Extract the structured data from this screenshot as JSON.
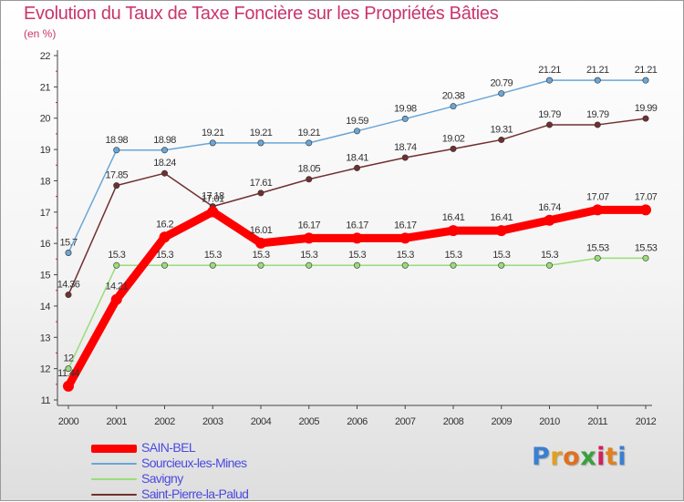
{
  "title": "Evolution du Taux de Taxe Foncière sur les Propriétés Bâties",
  "subtitle": "(en %)",
  "brand": {
    "letters": [
      "P",
      "r",
      "o",
      "x",
      "i",
      "t",
      "i"
    ],
    "colors": [
      "#3a7fd0",
      "#e0a020",
      "#e07020",
      "#3aa040",
      "#d02060",
      "#e08020",
      "#3a7fd0"
    ]
  },
  "legend": [
    {
      "label": "SAIN-BEL",
      "color": "#ff0000"
    },
    {
      "label": "Sourcieux-les-Mines",
      "color": "#6aa6d6"
    },
    {
      "label": "Savigny",
      "color": "#99dd77"
    },
    {
      "label": "Saint-Pierre-la-Palud",
      "color": "#703030"
    }
  ],
  "chart_data": {
    "type": "line",
    "title": "Evolution du Taux de Taxe Foncière sur les Propriétés Bâties",
    "ylabel": "(en %)",
    "x": [
      "2000",
      "2001",
      "2002",
      "2003",
      "2004",
      "2005",
      "2006",
      "2007",
      "2008",
      "2009",
      "2010",
      "2011",
      "2012"
    ],
    "ylim": [
      11,
      22
    ],
    "yticks": [
      "11",
      "12",
      "13",
      "14",
      "15",
      "16",
      "17",
      "18",
      "19",
      "20",
      "21",
      "22"
    ],
    "grid": false,
    "legend_position": "bottom-left",
    "series": [
      {
        "name": "SAIN-BEL",
        "color": "#ff0000",
        "values": [
          11.44,
          14.21,
          16.2,
          17.01,
          16.01,
          16.17,
          16.17,
          16.17,
          16.41,
          16.41,
          16.74,
          17.07,
          17.07
        ],
        "labels": [
          "11.44",
          "14.21",
          "16.2",
          "17.01",
          "16.01",
          "16.17",
          "16.17",
          "16.17",
          "16.41",
          "16.41",
          "16.74",
          "17.07",
          "17.07"
        ]
      },
      {
        "name": "Sourcieux-les-Mines",
        "color": "#6aa6d6",
        "values": [
          15.7,
          18.98,
          18.98,
          19.21,
          19.21,
          19.21,
          19.59,
          19.98,
          20.38,
          20.79,
          21.21,
          21.21,
          21.21
        ],
        "labels": [
          "15.7",
          "18.98",
          "18.98",
          "19.21",
          "19.21",
          "19.21",
          "19.59",
          "19.98",
          "20.38",
          "20.79",
          "21.21",
          "21.21",
          "21.21"
        ]
      },
      {
        "name": "Savigny",
        "color": "#99dd77",
        "values": [
          12,
          15.3,
          15.3,
          15.3,
          15.3,
          15.3,
          15.3,
          15.3,
          15.3,
          15.3,
          15.3,
          15.53,
          15.53
        ],
        "labels": [
          "12",
          "15.3",
          "15.3",
          "15.3",
          "15.3",
          "15.3",
          "15.3",
          "15.3",
          "15.3",
          "15.3",
          "15.3",
          "15.53",
          "15.53"
        ]
      },
      {
        "name": "Saint-Pierre-la-Palud",
        "color": "#703030",
        "values": [
          14.36,
          17.85,
          18.24,
          17.18,
          17.61,
          18.05,
          18.41,
          18.74,
          19.02,
          19.31,
          19.79,
          19.79,
          19.99
        ],
        "labels": [
          "14.36",
          "17.85",
          "18.24",
          "17.18",
          "17.61",
          "18.05",
          "18.41",
          "18.74",
          "19.02",
          "19.31",
          "19.79",
          "19.79",
          "19.99"
        ]
      }
    ]
  }
}
